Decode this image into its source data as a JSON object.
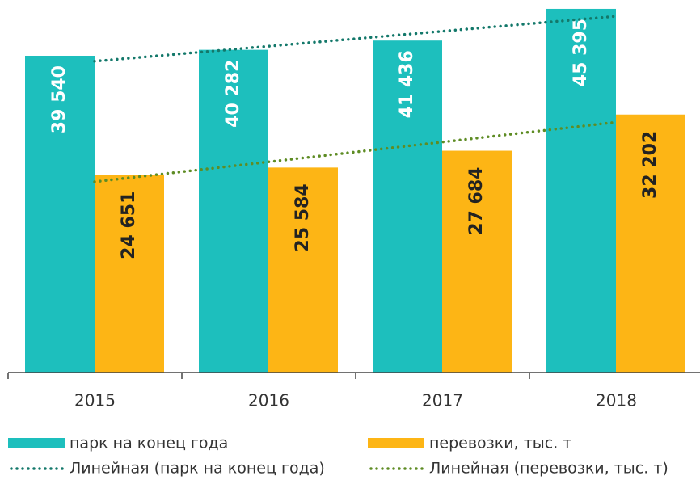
{
  "chart_data": {
    "type": "bar",
    "categories": [
      "2015",
      "2016",
      "2017",
      "2018"
    ],
    "series": [
      {
        "name": "парк на конец года",
        "color": "#1dbfbd",
        "values": [
          39540,
          40282,
          41436,
          45395
        ],
        "value_labels": [
          "39 540",
          "40 282",
          "41 436",
          "45 395"
        ],
        "label_color": "#ffffff",
        "trendline": {
          "name": "Линейная (парк на конец года)",
          "color": "#13786a"
        }
      },
      {
        "name": "перевозки, тыс. т",
        "color": "#fdb515",
        "values": [
          24651,
          25584,
          27684,
          32202
        ],
        "value_labels": [
          "24 651",
          "25 584",
          "27 684",
          "32 202"
        ],
        "label_color": "#222222",
        "trendline": {
          "name": "Линейная (перевозки, тыс. т)",
          "color": "#5e8c24"
        }
      }
    ],
    "ylim": [
      0,
      46500
    ]
  }
}
